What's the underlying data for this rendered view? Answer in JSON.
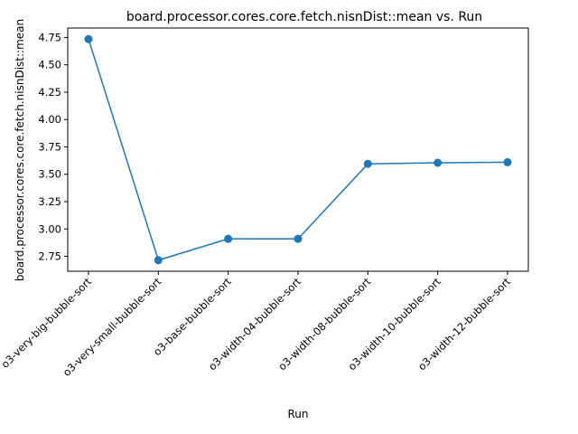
{
  "chart_data": {
    "type": "line",
    "title": "board.processor.cores.core.fetch.nisnDist::mean vs. Run",
    "xlabel": "Run",
    "ylabel": "board.processor.cores.core.fetch.nisnDist::mean",
    "categories": [
      "o3-very-big-bubble-sort",
      "o3-very-small-bubble-sort",
      "o3-base-bubble-sort",
      "o3-width-04-bubble-sort",
      "o3-width-08-bubble-sort",
      "o3-width-10-bubble-sort",
      "o3-width-12-bubble-sort"
    ],
    "series": [
      {
        "values": [
          4.735,
          2.715,
          2.91,
          2.91,
          3.595,
          3.605,
          3.61
        ]
      }
    ],
    "ylim": [
      2.614,
      4.836
    ],
    "yticks": [
      2.75,
      3.0,
      3.25,
      3.5,
      3.75,
      4.0,
      4.25,
      4.5,
      4.75
    ],
    "grid": false,
    "legend": "none",
    "colors": {
      "line": "#1f77b4",
      "marker": "#1f77b4",
      "axis": "#000000"
    }
  }
}
